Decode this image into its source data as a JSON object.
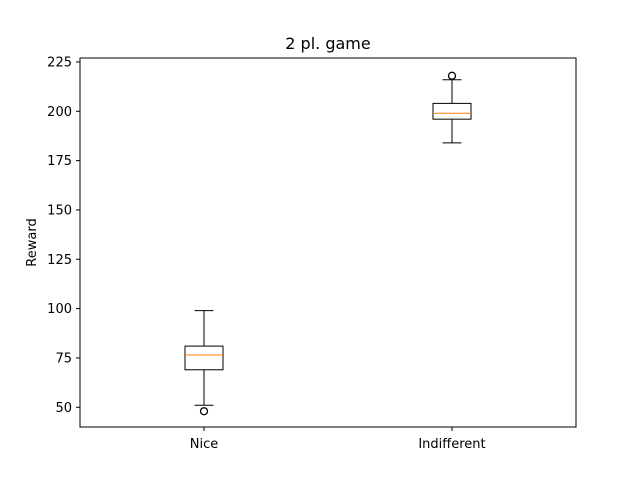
{
  "chart_data": {
    "type": "box",
    "title": "2 pl. game",
    "xlabel": "",
    "ylabel": "Reward",
    "ylim": [
      40,
      227
    ],
    "yticks": [
      50,
      75,
      100,
      125,
      150,
      175,
      200,
      225
    ],
    "grid": false,
    "categories": [
      "Nice",
      "Indifferent"
    ],
    "boxes": [
      {
        "category": "Nice",
        "whisker_low": 51,
        "q1": 69,
        "median": 76.5,
        "q3": 81,
        "whisker_high": 99,
        "outliers": [
          48
        ]
      },
      {
        "category": "Indifferent",
        "whisker_low": 184,
        "q1": 196,
        "median": 199,
        "q3": 204,
        "whisker_high": 216,
        "outliers": [
          218
        ]
      }
    ]
  },
  "colors": {
    "median": "#ff7f0e",
    "box": "#000000",
    "background": "#ffffff"
  }
}
